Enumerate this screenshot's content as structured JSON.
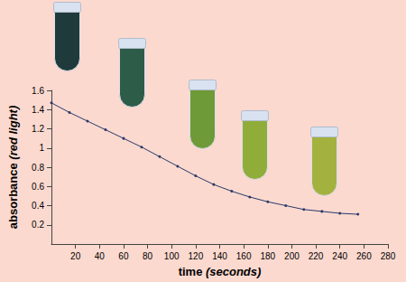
{
  "chart_data": {
    "type": "line",
    "x_label": "time (seconds)",
    "y_label": "absorbance (red light)",
    "x": [
      0,
      15,
      30,
      45,
      60,
      75,
      90,
      105,
      120,
      135,
      150,
      165,
      180,
      195,
      210,
      225,
      240,
      255
    ],
    "values": [
      1.47,
      1.37,
      1.28,
      1.19,
      1.1,
      1.01,
      0.91,
      0.81,
      0.71,
      0.62,
      0.55,
      0.49,
      0.44,
      0.4,
      0.36,
      0.34,
      0.32,
      0.31
    ],
    "color": "#2a3a6a",
    "marker": "circle",
    "xlim": [
      0,
      280
    ],
    "xticks": [
      20,
      40,
      60,
      80,
      100,
      120,
      140,
      160,
      180,
      200,
      220,
      240,
      260,
      280
    ],
    "ylim": [
      0,
      1.6
    ],
    "yticks": [
      0.2,
      0.4,
      0.6,
      0.8,
      1,
      1.2,
      1.4,
      1.6
    ],
    "grid": false
  }
}
